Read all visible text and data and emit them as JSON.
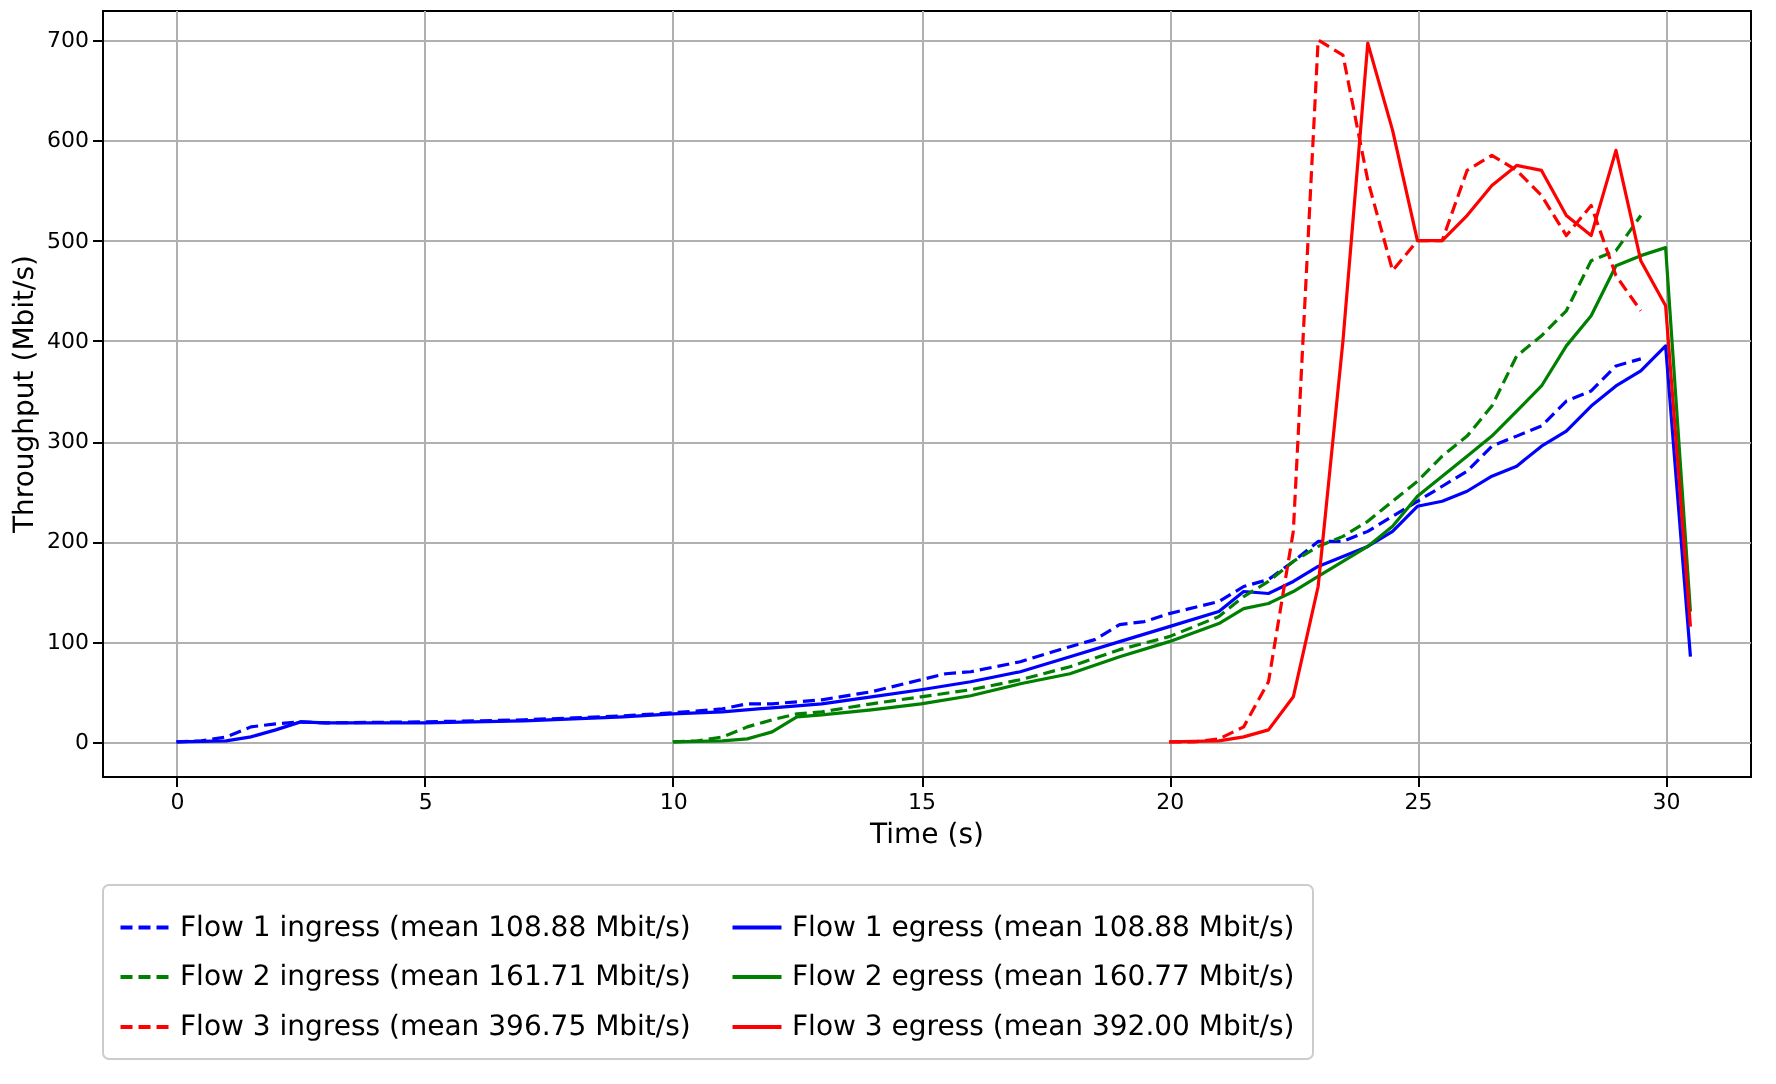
{
  "chart_data": {
    "type": "line",
    "xlabel": "Time (s)",
    "ylabel": "Throughput (Mbit/s)",
    "xlim": [
      -1.5,
      31.7
    ],
    "xticks": [
      0,
      5,
      10,
      15,
      20,
      25,
      30
    ],
    "ylim": [
      -34,
      730
    ],
    "yticks": [
      0,
      100,
      200,
      300,
      400,
      500,
      600,
      700
    ],
    "grid": true,
    "legend": "bottom",
    "marker": "none",
    "series": [
      {
        "name": "Flow 1 ingress (mean 108.88 Mbit/s)",
        "color": "#0000ff",
        "line_style": "dashed",
        "x": [
          0,
          0.5,
          1,
          1.5,
          2,
          2.5,
          3,
          5,
          7,
          8,
          9,
          10,
          11,
          11.5,
          12,
          13,
          14,
          15,
          15.5,
          16,
          17,
          18,
          18.5,
          19,
          19.5,
          20,
          21,
          21.5,
          22,
          22.5,
          23,
          23.5,
          24,
          25,
          25.5,
          26,
          26.5,
          27,
          27.5,
          28,
          28.5,
          29,
          29.5
        ],
        "values": [
          0,
          1,
          5,
          15,
          18,
          20,
          19,
          20,
          22,
          24,
          26,
          29,
          33,
          38,
          38,
          42,
          50,
          62,
          68,
          70,
          80,
          95,
          102,
          117,
          120,
          128,
          140,
          155,
          162,
          180,
          200,
          200,
          210,
          240,
          255,
          270,
          295,
          305,
          315,
          340,
          350,
          375,
          382
        ]
      },
      {
        "name": "Flow 1 egress (mean 108.88 Mbit/s)",
        "color": "#0000ff",
        "line_style": "solid",
        "x": [
          0,
          1,
          1.5,
          2,
          2.5,
          3,
          5,
          7,
          9,
          10,
          11,
          12,
          13,
          14,
          15,
          16,
          17,
          18,
          19,
          20,
          21,
          21.5,
          22,
          22.5,
          23,
          24,
          24.5,
          25,
          25.5,
          26,
          26.5,
          27,
          27.5,
          28,
          28.5,
          29,
          29.5,
          30,
          30.5
        ],
        "values": [
          0,
          1,
          5,
          12,
          20,
          19,
          19,
          21,
          25,
          28,
          30,
          34,
          38,
          45,
          52,
          60,
          70,
          85,
          100,
          115,
          130,
          150,
          148,
          160,
          175,
          195,
          210,
          235,
          240,
          250,
          265,
          275,
          295,
          310,
          335,
          355,
          370,
          395,
          85
        ]
      },
      {
        "name": "Flow 2 ingress (mean 161.71 Mbit/s)",
        "color": "#008000",
        "line_style": "dashed",
        "x": [
          10,
          10.5,
          11,
          11.5,
          12,
          12.5,
          13,
          14,
          15,
          16,
          17,
          18,
          19,
          20,
          21,
          21.5,
          22,
          22.5,
          23,
          23.5,
          24,
          24.5,
          25,
          25.5,
          26,
          26.5,
          27,
          27.5,
          28,
          28.5,
          29,
          29.5
        ],
        "values": [
          0,
          1,
          5,
          15,
          22,
          28,
          30,
          38,
          45,
          52,
          62,
          75,
          92,
          105,
          125,
          145,
          160,
          180,
          195,
          205,
          220,
          240,
          260,
          285,
          305,
          335,
          385,
          405,
          430,
          480,
          490,
          525
        ]
      },
      {
        "name": "Flow 2 egress (mean 160.77 Mbit/s)",
        "color": "#008000",
        "line_style": "solid",
        "x": [
          10,
          11,
          11.5,
          12,
          12.5,
          13,
          14,
          15,
          16,
          17,
          18,
          19,
          20,
          21,
          21.5,
          22,
          22.5,
          23,
          24,
          24.5,
          25,
          25.5,
          26,
          26.5,
          27,
          27.5,
          28,
          28.5,
          29,
          29.5,
          30,
          30.5
        ],
        "values": [
          0,
          1,
          3,
          10,
          25,
          27,
          32,
          38,
          46,
          58,
          68,
          85,
          100,
          118,
          133,
          138,
          150,
          165,
          195,
          215,
          245,
          265,
          285,
          305,
          330,
          355,
          395,
          425,
          475,
          485,
          493,
          130
        ]
      },
      {
        "name": "Flow 3 ingress (mean 396.75 Mbit/s)",
        "color": "#ff0000",
        "line_style": "dashed",
        "x": [
          20,
          20.5,
          21,
          21.5,
          22,
          22.5,
          23,
          23.5,
          24,
          24.5,
          25,
          25.5,
          26,
          26.5,
          27,
          27.5,
          28,
          28.5,
          29,
          29.5
        ],
        "values": [
          0,
          0,
          3,
          15,
          60,
          210,
          700,
          685,
          560,
          470,
          500,
          500,
          570,
          585,
          570,
          545,
          505,
          535,
          465,
          430
        ]
      },
      {
        "name": "Flow 3 egress (mean 392.00 Mbit/s)",
        "color": "#ff0000",
        "line_style": "solid",
        "x": [
          20,
          21,
          21.5,
          22,
          22.5,
          23,
          23.5,
          24,
          24.5,
          25,
          25.5,
          26,
          26.5,
          27,
          27.5,
          28,
          28.5,
          29,
          29.5,
          30,
          30.5
        ],
        "values": [
          0,
          1,
          5,
          12,
          45,
          155,
          400,
          697,
          610,
          500,
          500,
          525,
          555,
          575,
          570,
          525,
          505,
          590,
          480,
          435,
          115
        ]
      }
    ]
  }
}
